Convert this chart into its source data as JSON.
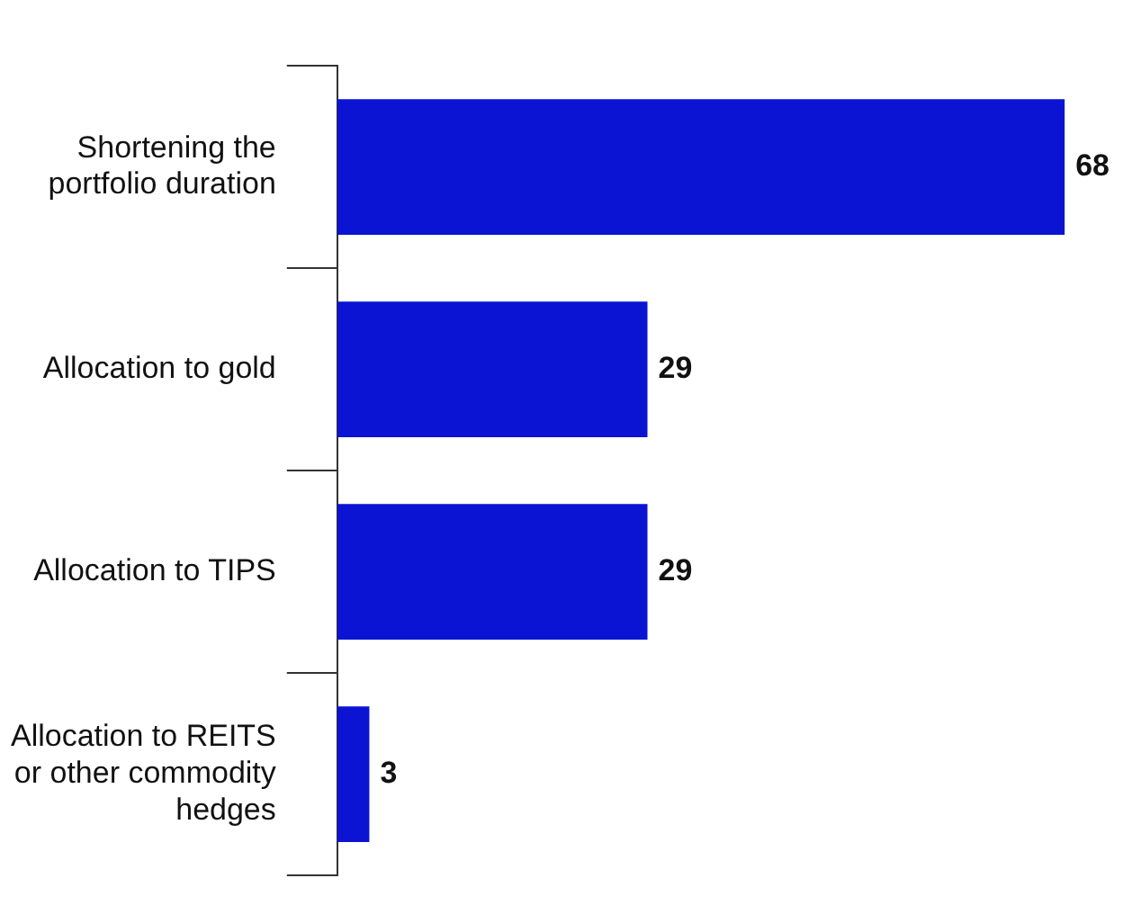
{
  "chart_data": {
    "type": "bar",
    "orientation": "horizontal",
    "categories": [
      "Shortening the portfolio duration",
      "Allocation to gold",
      "Allocation to TIPS",
      "Allocation to REITS or other commodity hedges"
    ],
    "values": [
      68,
      29,
      29,
      3
    ],
    "color": "#0a14d2",
    "data_labels": true,
    "grid": false,
    "legend": false
  }
}
